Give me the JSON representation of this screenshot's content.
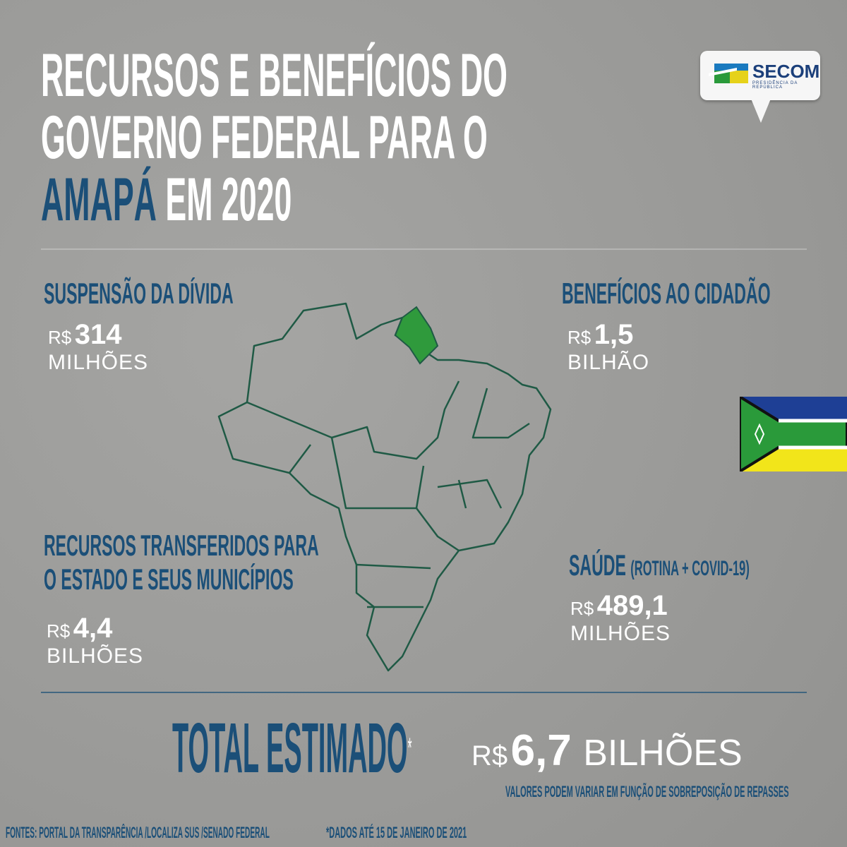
{
  "header": {
    "line1": "RECURSOS E BENEFÍCIOS DO",
    "line2": "GOVERNO FEDERAL PARA O",
    "state": "AMAPÁ",
    "line3_rest": "EM 2020"
  },
  "logo": {
    "name": "SECOM",
    "subtitle": "PRESIDÊNCIA DA REPÚBLICA"
  },
  "sections": [
    {
      "title": "SUSPENSÃO DA DÍVIDA",
      "currency": "R$",
      "value": "314",
      "unit": "MILHÕES"
    },
    {
      "title": "BENEFÍCIOS AO CIDADÃO",
      "currency": "R$",
      "value": "1,5",
      "unit": "BILHÃO"
    },
    {
      "title_line1": "RECURSOS TRANSFERIDOS PARA",
      "title_line2": "O ESTADO E SEUS MUNICÍPIOS",
      "currency": "R$",
      "value": "4,4",
      "unit": "BILHÕES"
    },
    {
      "title": "SAÚDE",
      "title_note": "(ROTINA + COVID-19)",
      "currency": "R$",
      "value": "489,1",
      "unit": "MILHÕES"
    }
  ],
  "total": {
    "label": "TOTAL ESTIMADO",
    "asterisk": "*",
    "currency": "R$",
    "value": "6,7",
    "unit": "BILHÕES",
    "note": "VALORES PODEM VARIAR EM FUNÇÃO DE SOBREPOSIÇÃO DE REPASSES"
  },
  "footer": {
    "sources": "FONTES: PORTAL DA TRANSPARÊNCIA /LOCALIZA SUS /SENADO FEDERAL",
    "date_note": "*DADOS ATÉ 15 DE JANEIRO DE 2021"
  },
  "colors": {
    "accent_blue": "#1b4f78",
    "highlight_green": "#2f9a3c",
    "background": "#9c9c9a"
  },
  "map": {
    "highlighted_state": "Amapá"
  },
  "flag": {
    "name": "Amapá flag"
  }
}
